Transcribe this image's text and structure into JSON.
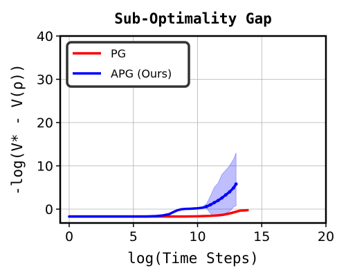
{
  "chart_data": {
    "type": "line",
    "title": "Sub-Optimality Gap",
    "xlabel": "log(Time Steps)",
    "ylabel": "-log(V* - V(ρ))",
    "xlim": [
      -0.7,
      20
    ],
    "ylim": [
      -3.2,
      40
    ],
    "xticks": [
      0,
      5,
      10,
      15,
      20
    ],
    "yticks": [
      0,
      10,
      20,
      30,
      40
    ],
    "grid": true,
    "legend_position": "top-left",
    "series": [
      {
        "name": "PG",
        "color": "#ff0000",
        "x": [
          0,
          2,
          4,
          6,
          7,
          8,
          9,
          10,
          10.5,
          11,
          11.5,
          12,
          12.5,
          13,
          13.3,
          13.6,
          13.9
        ],
        "y": [
          -1.7,
          -1.7,
          -1.7,
          -1.7,
          -1.7,
          -1.7,
          -1.7,
          -1.65,
          -1.6,
          -1.55,
          -1.45,
          -1.3,
          -1.0,
          -0.6,
          -0.35,
          -0.3,
          -0.25
        ]
      },
      {
        "name": "APG (Ours)",
        "color": "#0000ff",
        "band_color": "#0000ff",
        "x": [
          0,
          2,
          4,
          6,
          6.8,
          7.3,
          7.8,
          8.1,
          8.4,
          8.7,
          9,
          9.5,
          10,
          10.4,
          10.7,
          11,
          11.3,
          11.6,
          11.9,
          12.2,
          12.5,
          12.8,
          13.0
        ],
        "y": [
          -1.7,
          -1.7,
          -1.7,
          -1.7,
          -1.6,
          -1.45,
          -1.15,
          -0.7,
          -0.3,
          -0.05,
          0.05,
          0.1,
          0.2,
          0.35,
          0.6,
          1.0,
          1.5,
          2.0,
          2.6,
          3.3,
          4.0,
          4.9,
          5.8
        ],
        "y_upper": [
          -1.7,
          -1.7,
          -1.7,
          -1.7,
          -1.6,
          -1.45,
          -1.15,
          -0.7,
          -0.3,
          -0.05,
          0.05,
          0.15,
          0.3,
          0.5,
          1.2,
          3.0,
          5.0,
          6.0,
          8.0,
          9.0,
          10.0,
          11.5,
          13.0
        ],
        "y_lower": [
          -1.7,
          -1.7,
          -1.7,
          -1.7,
          -1.6,
          -1.45,
          -1.15,
          -0.7,
          -0.3,
          -0.05,
          0.05,
          0.05,
          0.1,
          0.15,
          0.2,
          -1.0,
          -1.7,
          -1.7,
          -1.6,
          -1.0,
          -0.5,
          0.5,
          0.8
        ]
      }
    ]
  }
}
